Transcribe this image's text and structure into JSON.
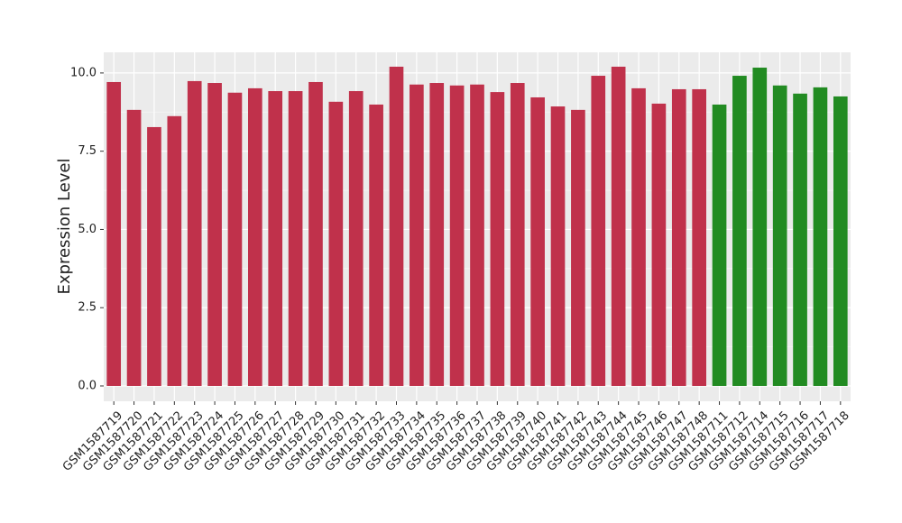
{
  "chart_data": {
    "type": "bar",
    "y_label": "Expression Level",
    "categories": [
      "GSM1587719",
      "GSM1587720",
      "GSM1587721",
      "GSM1587722",
      "GSM1587723",
      "GSM1587724",
      "GSM1587725",
      "GSM1587726",
      "GSM1587727",
      "GSM1587728",
      "GSM1587729",
      "GSM1587730",
      "GSM1587731",
      "GSM1587732",
      "GSM1587733",
      "GSM1587734",
      "GSM1587735",
      "GSM1587736",
      "GSM1587737",
      "GSM1587738",
      "GSM1587739",
      "GSM1587740",
      "GSM1587741",
      "GSM1587742",
      "GSM1587743",
      "GSM1587744",
      "GSM1587745",
      "GSM1587746",
      "GSM1587747",
      "GSM1587748",
      "GSM1587711",
      "GSM1587712",
      "GSM1587714",
      "GSM1587715",
      "GSM1587716",
      "GSM1587717",
      "GSM1587718"
    ],
    "values": [
      9.71,
      8.82,
      8.27,
      8.62,
      9.74,
      9.68,
      9.37,
      9.51,
      9.42,
      9.42,
      9.71,
      9.08,
      9.42,
      8.99,
      10.2,
      9.63,
      9.68,
      9.6,
      9.63,
      9.39,
      9.68,
      9.22,
      8.93,
      8.82,
      9.91,
      10.2,
      9.51,
      9.02,
      9.48,
      9.48,
      8.99,
      9.91,
      10.17,
      9.6,
      9.34,
      9.54,
      9.25
    ],
    "colors": [
      "#c0314b",
      "#c0314b",
      "#c0314b",
      "#c0314b",
      "#c0314b",
      "#c0314b",
      "#c0314b",
      "#c0314b",
      "#c0314b",
      "#c0314b",
      "#c0314b",
      "#c0314b",
      "#c0314b",
      "#c0314b",
      "#c0314b",
      "#c0314b",
      "#c0314b",
      "#c0314b",
      "#c0314b",
      "#c0314b",
      "#c0314b",
      "#c0314b",
      "#c0314b",
      "#c0314b",
      "#c0314b",
      "#c0314b",
      "#c0314b",
      "#c0314b",
      "#c0314b",
      "#c0314b",
      "#228b22",
      "#228b22",
      "#228b22",
      "#228b22",
      "#228b22",
      "#228b22",
      "#228b22"
    ],
    "ylim": [
      -0.49,
      10.66
    ],
    "yticks": [
      {
        "value": 0,
        "label": "0.0"
      },
      2.5,
      {
        "value": 5,
        "label": "5.0"
      },
      7.5,
      {
        "value": 10,
        "label": "10.0"
      }
    ],
    "grid": true
  }
}
